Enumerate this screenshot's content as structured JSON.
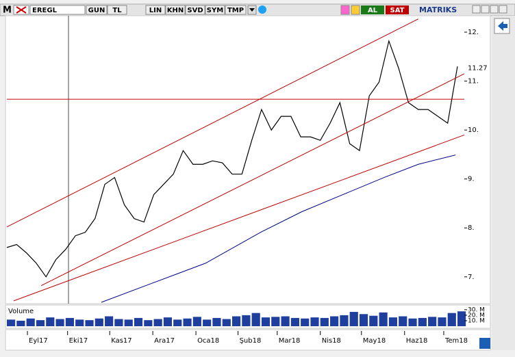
{
  "toolbar": {
    "logo": "M",
    "symbol": "EREGL",
    "buttons": [
      "GUN",
      "TL",
      "LIN",
      "KHN",
      "SVD",
      "SYM",
      "TMP"
    ],
    "buy": "AL",
    "sell": "SAT",
    "brand": "MATRIKS"
  },
  "chart_data": [
    {
      "type": "line",
      "xlim": [
        0,
        46.7
      ],
      "ylim": [
        6.48,
        12.35
      ],
      "xticks": [
        {
          "value": 2.1,
          "label": "Eyl17"
        },
        {
          "value": 6.2,
          "label": "Eki17"
        },
        {
          "value": 10.5,
          "label": "Kas17"
        },
        {
          "value": 14.9,
          "label": "Ara17"
        },
        {
          "value": 19.3,
          "label": "Oca18"
        },
        {
          "value": 23.6,
          "label": "Şub18"
        },
        {
          "value": 27.6,
          "label": "Mar18"
        },
        {
          "value": 32.0,
          "label": "Nis18"
        },
        {
          "value": 36.2,
          "label": "May18"
        },
        {
          "value": 40.6,
          "label": "Haz18"
        },
        {
          "value": 44.6,
          "label": "Tem18"
        }
      ],
      "yticks": [
        {
          "value": 7,
          "label": "7."
        },
        {
          "value": 8,
          "label": "8."
        },
        {
          "value": 9,
          "label": "9."
        },
        {
          "value": 10,
          "label": "10."
        },
        {
          "value": 11,
          "label": "11."
        },
        {
          "value": 12,
          "label": "12."
        }
      ],
      "last_price": 11.27,
      "series": [
        {
          "color": "#000000",
          "x": [
            0,
            1,
            2,
            3,
            4,
            5,
            6,
            7,
            8,
            9,
            10,
            11,
            12,
            13,
            14,
            15,
            16,
            17,
            18,
            19,
            20,
            21,
            22,
            23,
            24,
            25,
            26,
            27,
            28,
            29,
            30,
            31,
            32,
            33,
            34,
            35,
            36,
            37,
            38,
            39,
            40,
            41,
            42,
            43,
            44,
            45,
            46
          ],
          "values": [
            7.6,
            7.66,
            7.49,
            7.28,
            7.0,
            7.35,
            7.56,
            7.84,
            7.91,
            8.19,
            8.89,
            9.03,
            8.47,
            8.19,
            8.12,
            8.68,
            8.89,
            9.1,
            9.58,
            9.3,
            9.3,
            9.37,
            9.33,
            9.1,
            9.1,
            9.79,
            10.42,
            10.0,
            10.28,
            10.28,
            9.86,
            9.86,
            9.79,
            10.14,
            10.56,
            9.72,
            9.58,
            10.7,
            10.98,
            11.82,
            11.26,
            10.56,
            10.42,
            10.42,
            10.28,
            10.14,
            11.3
          ]
        },
        {
          "color": "#00008b",
          "x": [
            9.65,
            14.7,
            20.3,
            25.9,
            30.1,
            34.3,
            38.5,
            42.0,
            45.8
          ],
          "values": [
            6.48,
            6.86,
            7.28,
            7.91,
            8.33,
            8.68,
            9.03,
            9.3,
            9.49
          ]
        },
        {
          "color": "#c00000",
          "x": [
            0,
            42
          ],
          "values": [
            8.02,
            12.27
          ]
        },
        {
          "color": "#c00000",
          "x": [
            3.5,
            46.7
          ],
          "values": [
            6.82,
            11.15
          ]
        },
        {
          "color": "#c00000",
          "x": [
            0.7,
            46.7
          ],
          "values": [
            6.51,
            9.9
          ]
        },
        {
          "color": "#c00000",
          "x": [
            0,
            46.7
          ],
          "values": [
            10.63,
            10.63
          ]
        }
      ]
    },
    {
      "type": "bar",
      "title": "Volume",
      "color": "#1f3f9f",
      "xlim": [
        0,
        46.7
      ],
      "ylim": [
        0,
        36000000
      ],
      "yticks": [
        {
          "value": 10000000,
          "label": "10. M"
        },
        {
          "value": 20000000,
          "label": "20. M"
        },
        {
          "value": 30000000,
          "label": "30. M"
        }
      ],
      "x": [
        0,
        1,
        2,
        3,
        4,
        5,
        6,
        7,
        8,
        9,
        10,
        11,
        12,
        13,
        14,
        15,
        16,
        17,
        18,
        19,
        20,
        21,
        22,
        23,
        24,
        25,
        26,
        27,
        28,
        29,
        30,
        31,
        32,
        33,
        34,
        35,
        36,
        37,
        38,
        39,
        40,
        41,
        42,
        43,
        44,
        45,
        46
      ],
      "values": [
        12000000,
        10000000,
        14000000,
        11000000,
        16000000,
        13000000,
        15000000,
        12000000,
        11000000,
        14000000,
        18000000,
        13000000,
        12000000,
        15000000,
        11000000,
        13000000,
        16000000,
        12000000,
        14000000,
        17000000,
        12000000,
        15000000,
        13000000,
        18000000,
        20000000,
        24000000,
        16000000,
        17000000,
        18000000,
        15000000,
        14000000,
        16000000,
        15000000,
        18000000,
        20000000,
        26000000,
        22000000,
        19000000,
        25000000,
        16000000,
        18000000,
        14000000,
        15000000,
        17000000,
        16000000,
        24000000,
        27000000
      ]
    }
  ]
}
